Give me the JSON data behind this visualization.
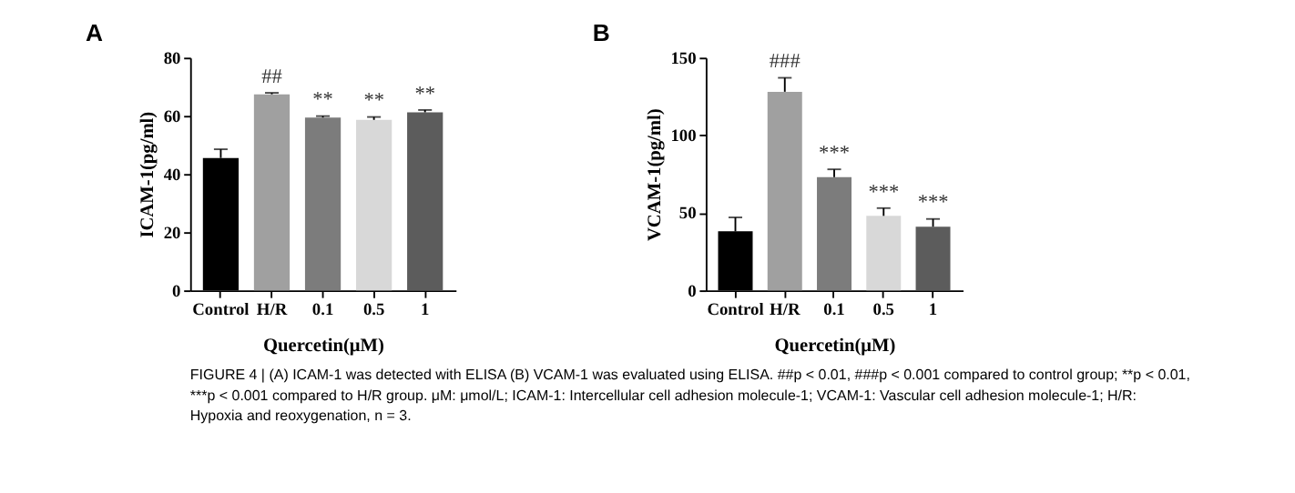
{
  "chart_data": [
    {
      "type": "bar",
      "title": "A",
      "xlabel": "Quercetin(μM)",
      "ylabel": "ICAM-1(pg/ml)",
      "categories": [
        "Control",
        "H/R",
        "0.1",
        "0.5",
        "1"
      ],
      "values": [
        45.5,
        67.4,
        59.4,
        58.6,
        61.2
      ],
      "errors": [
        3,
        0.5,
        0.5,
        1,
        0.8
      ],
      "colors": [
        "#000000",
        "#a0a0a0",
        "#7c7c7c",
        "#d8d8d8",
        "#5c5c5c"
      ],
      "ylim": [
        0,
        80
      ],
      "yticks": [
        0,
        20,
        40,
        60,
        80
      ],
      "grid": false,
      "annotations": [
        {
          "text": "##",
          "x": "H/R",
          "y": 67.4
        },
        {
          "text": "**",
          "x": "0.1",
          "y": 59.4
        },
        {
          "text": "**",
          "x": "0.5",
          "y": 58.6
        },
        {
          "text": "**",
          "x": "1",
          "y": 61.2
        }
      ]
    },
    {
      "type": "bar",
      "title": "B",
      "xlabel": "Quercetin(μM)",
      "ylabel": "VCAM-1(pg/ml)",
      "categories": [
        "Control",
        "H/R",
        "0.1",
        "0.5",
        "1"
      ],
      "values": [
        38,
        128,
        73,
        48,
        41
      ],
      "errors": [
        9,
        9,
        5,
        5,
        5
      ],
      "colors": [
        "#000000",
        "#a0a0a0",
        "#7c7c7c",
        "#d8d8d8",
        "#5c5c5c"
      ],
      "ylim": [
        0,
        150
      ],
      "yticks": [
        0,
        50,
        100,
        150
      ],
      "grid": false,
      "annotations": [
        {
          "text": "###",
          "x": "H/R",
          "y": 128
        },
        {
          "text": "***",
          "x": "0.1",
          "y": 73
        },
        {
          "text": "***",
          "x": "0.5",
          "y": 48
        },
        {
          "text": "***",
          "x": "1",
          "y": 41
        },
        "FIGURE 4 | (A) ICAM-1 was detected with ELISA (B) VCAM-1 was evaluated using ELISA. ##p < 0.01, ###p < 0.001 compared to control group; **p < 0.01, ***p < 0.001 compared to H/R group. μM: μmol/L; ICAM-1: Intercellular cell adhesion molecule-1; VCAM-1: Vascular cell adhesion molecule-1; H/R: Hypoxia and reoxygenation, n = 3."
      ]
    }
  ]
}
